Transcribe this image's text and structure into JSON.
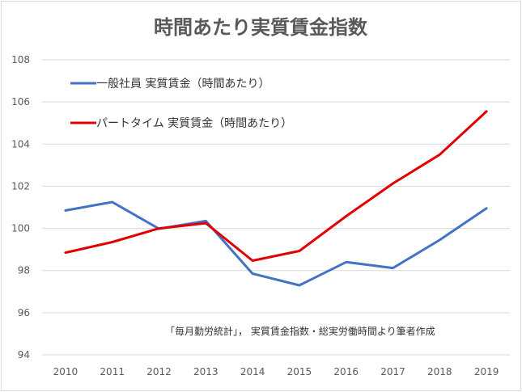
{
  "chart_data": {
    "type": "line",
    "title": "時間あたり実質賃金指数",
    "xlabel": "",
    "ylabel": "",
    "categories": [
      "2010",
      "2011",
      "2012",
      "2013",
      "2014",
      "2015",
      "2016",
      "2017",
      "2018",
      "2019"
    ],
    "y_ticks": [
      "94",
      "96",
      "98",
      "100",
      "102",
      "104",
      "106",
      "108"
    ],
    "ylim": [
      94,
      108
    ],
    "grid": true,
    "legend_position": "top-left",
    "series": [
      {
        "name": "一般社員 実質賃金（時間あたり）",
        "color": "#4472c4",
        "values": [
          100.85,
          101.25,
          99.98,
          100.35,
          97.85,
          97.3,
          98.4,
          98.12,
          99.45,
          100.95
        ]
      },
      {
        "name": "パートタイム 実質賃金（時間あたり）",
        "color": "#e00000",
        "values": [
          98.85,
          99.35,
          100.0,
          100.25,
          98.47,
          98.93,
          100.58,
          102.13,
          103.5,
          105.55
        ]
      }
    ],
    "annotation": "「毎月勤労統計」， 実質賃金指数・総実労働時間より筆者作成"
  }
}
